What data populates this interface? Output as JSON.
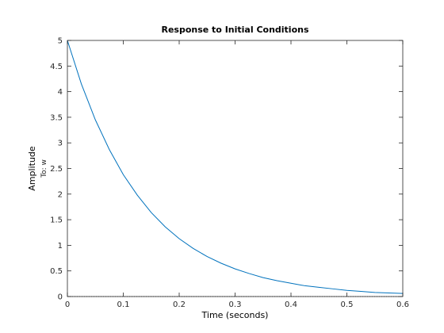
{
  "chart_data": {
    "type": "line",
    "title": "Response to Initial Conditions",
    "xlabel": "Time (seconds)",
    "ylabel": "Amplitude",
    "output_label": "To: w",
    "xlim": [
      0,
      0.6
    ],
    "ylim": [
      0,
      5
    ],
    "xticks": [
      0,
      0.1,
      0.2,
      0.3,
      0.4,
      0.5,
      0.6
    ],
    "xtick_labels": [
      "0",
      "0.1",
      "0.2",
      "0.3",
      "0.4",
      "0.5",
      "0.6"
    ],
    "yticks": [
      0,
      0.5,
      1,
      1.5,
      2,
      2.5,
      3,
      3.5,
      4,
      4.5,
      5
    ],
    "ytick_labels": [
      "0",
      "0.5",
      "1",
      "1.5",
      "2",
      "2.5",
      "3",
      "3.5",
      "4",
      "4.5",
      "5"
    ],
    "grid": false,
    "baseline": {
      "y": 0,
      "style": "dotted",
      "color": "#000000"
    },
    "series": [
      {
        "color": "#0072BD",
        "x": [
          0,
          0.025,
          0.05,
          0.075,
          0.1,
          0.125,
          0.15,
          0.175,
          0.2,
          0.225,
          0.25,
          0.275,
          0.3,
          0.325,
          0.35,
          0.375,
          0.4,
          0.425,
          0.45,
          0.475,
          0.5,
          0.525,
          0.55,
          0.575,
          0.6
        ],
        "y": [
          5.0,
          4.15,
          3.45,
          2.87,
          2.38,
          1.98,
          1.64,
          1.36,
          1.13,
          0.94,
          0.78,
          0.65,
          0.54,
          0.45,
          0.37,
          0.31,
          0.26,
          0.21,
          0.18,
          0.15,
          0.12,
          0.1,
          0.08,
          0.07,
          0.06
        ]
      }
    ]
  }
}
